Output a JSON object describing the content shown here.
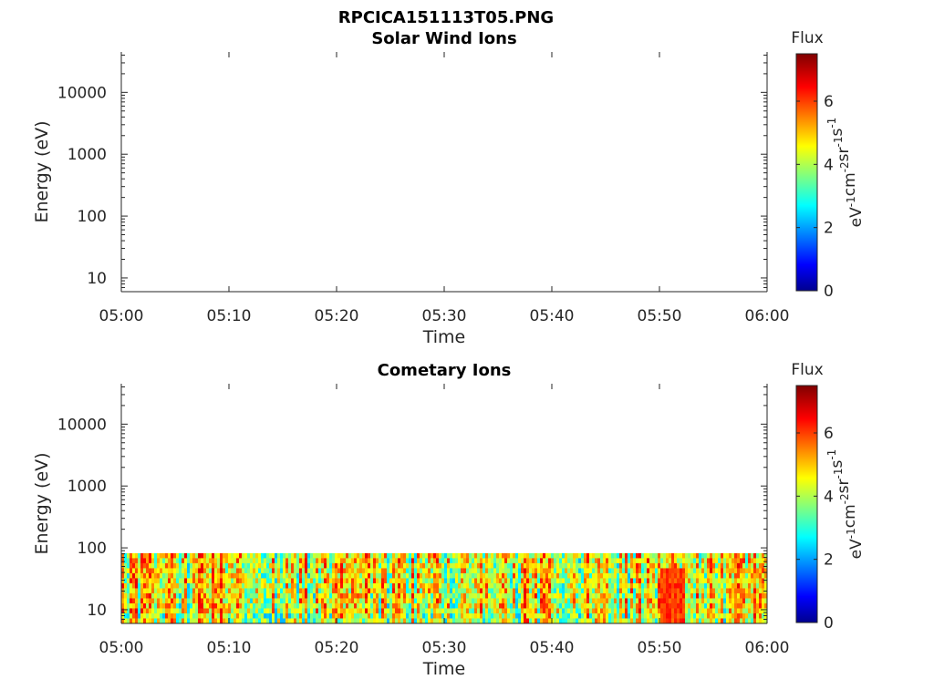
{
  "figure": {
    "title": "RPCICA151113T05.PNG"
  },
  "chart_data": [
    {
      "type": "heatmap",
      "title": "Solar Wind Ions",
      "xlabel": "Time",
      "ylabel": "Energy (eV)",
      "x_ticks": [
        "05:00",
        "05:10",
        "05:20",
        "05:30",
        "05:40",
        "05:50",
        "06:00"
      ],
      "xlim": [
        "05:00",
        "06:00"
      ],
      "y_scale": "log",
      "y_ticks": [
        10,
        100,
        1000,
        10000
      ],
      "y_tick_labels": [
        "10",
        "100",
        "1000",
        "10000"
      ],
      "ylim": [
        6,
        45000
      ],
      "data_present": false,
      "colorbar": {
        "title": "Flux",
        "label": "eV-1cm-2sr-1s-1",
        "ticks": [
          "0",
          "2",
          "4",
          "6"
        ],
        "range": [
          0,
          7.5
        ],
        "colormap": "jet"
      }
    },
    {
      "type": "heatmap",
      "title": "Cometary Ions",
      "xlabel": "Time",
      "ylabel": "Energy (eV)",
      "x_ticks": [
        "05:00",
        "05:10",
        "05:20",
        "05:30",
        "05:40",
        "05:50",
        "06:00"
      ],
      "xlim": [
        "05:00",
        "06:00"
      ],
      "y_scale": "log",
      "y_ticks": [
        10,
        100,
        1000,
        10000
      ],
      "y_tick_labels": [
        "10",
        "100",
        "1000",
        "10000"
      ],
      "ylim": [
        6,
        45000
      ],
      "data_present": true,
      "energy_range": [
        6,
        82
      ],
      "flux_range_approx": [
        2,
        6.5
      ],
      "colorbar": {
        "title": "Flux",
        "label": "eV-1cm-2sr-1s-1",
        "ticks": [
          "0",
          "2",
          "4",
          "6"
        ],
        "range": [
          0,
          7.5
        ],
        "colormap": "jet"
      }
    }
  ]
}
